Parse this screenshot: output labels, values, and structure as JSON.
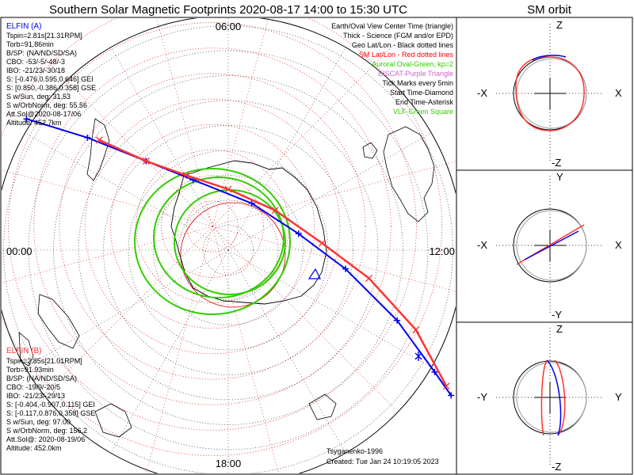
{
  "title": "Southern Solar Magnetic Footprints 2020-08-17 14:00 to 15:30 UTC",
  "orbit_title": "SM orbit",
  "hour_labels": {
    "top": "06:00",
    "left": "00:00",
    "right": "12:00",
    "bottom": "18:00"
  },
  "legend": [
    {
      "text": "Earth/Oval View Center Time (triangle)",
      "color": "#000000"
    },
    {
      "text": "Thick - Science (FGM and/or EPD)",
      "color": "#000000"
    },
    {
      "text": "Geo Lat/Lon - Black dotted lines",
      "color": "#000000"
    },
    {
      "text": "SM Lat/Lon - Red dotted lines",
      "color": "#ff0000"
    },
    {
      "text": "Auroral Oval-Green, kp=2",
      "color": "#33cc00"
    },
    {
      "text": "EISCAT-Purple Triangle",
      "color": "#cc66cc"
    },
    {
      "text": "Tick Marks every 5min",
      "color": "#000000"
    },
    {
      "text": "Start Time-Diamond",
      "color": "#000000"
    },
    {
      "text": "End Time-Asterisk",
      "color": "#000000"
    },
    {
      "text": "VLF-Green Square",
      "color": "#33cc00"
    }
  ],
  "elfin_a": {
    "name": "ELFIN (A)",
    "color": "#0000ee",
    "lines": [
      "Tspin=2.81s[21.31RPM]",
      "Torb=91.86min",
      "B/SP: (NA/ND/SD/SA)",
      "CBO: -53/-5/-48/-3",
      "IBO: -21/23/-30/18",
      "S: [-0.476,0.595,0.646] GEI",
      "S: [0.850,-0.386,0.358] GSE",
      "S w/Sun, deg: 31.53",
      "S w/OrbNorm, deg: 55.56",
      "Att.Sol@2020-08-17/06",
      "Altitude: 452.7km"
    ]
  },
  "elfin_b": {
    "name": "ELFIN (B)",
    "color": "#ff3333",
    "lines": [
      "Tspin=2.85s[21.01RPM]",
      "Torb=91.93min",
      "B/SP: (NA/ND/SD/SA)",
      "CBO: -19/9/-20/5",
      "IBO: -21/23/-29/13",
      "S: [-0.404,-0.907,0.115] GEI",
      "S: [-0.117,0.876,0.358] GSE",
      "S w/Sun, deg: 97.00",
      "S w/OrbNorm, deg: 156.2",
      "Att.Sol@: 2020-08-19/06",
      "Altitude: 452.0km"
    ]
  },
  "model": "Tsyganenko-1996",
  "created": "Created: Tue Jan 24 10:19:05 2023",
  "orbit_panels": [
    {
      "top": "Z",
      "bottom": "-Z",
      "left": "-X",
      "right": "X"
    },
    {
      "top": "Y",
      "bottom": "-Y",
      "left": "-X",
      "right": "X"
    },
    {
      "top": "Z",
      "bottom": "-Z",
      "left": "-Y",
      "right": "Y"
    }
  ],
  "colors": {
    "elfin_a": "#0000ee",
    "elfin_b": "#ff3333",
    "sm_grid": "#dd0000",
    "geo_grid": "#333333",
    "oval": "#33cc00"
  },
  "chart_data": [
    {
      "type": "line",
      "title": "Southern Solar Magnetic Footprints 2020-08-17 14:00 to 15:30 UTC",
      "series": [
        {
          "name": "ELFIN (A)",
          "x": [
            -0.86,
            -0.6,
            -0.35,
            -0.15,
            0.1,
            0.3,
            0.5,
            0.72,
            0.88,
            0.95
          ],
          "y": [
            0.56,
            0.48,
            0.38,
            0.3,
            0.2,
            0.07,
            -0.08,
            -0.3,
            -0.52,
            -0.62
          ]
        },
        {
          "name": "ELFIN (B)",
          "x": [
            -0.55,
            -0.35,
            -0.18,
            0.0,
            0.2,
            0.4,
            0.6,
            0.8,
            0.93
          ],
          "y": [
            0.47,
            0.38,
            0.32,
            0.26,
            0.17,
            0.03,
            -0.12,
            -0.34,
            -0.58
          ]
        }
      ]
    }
  ]
}
